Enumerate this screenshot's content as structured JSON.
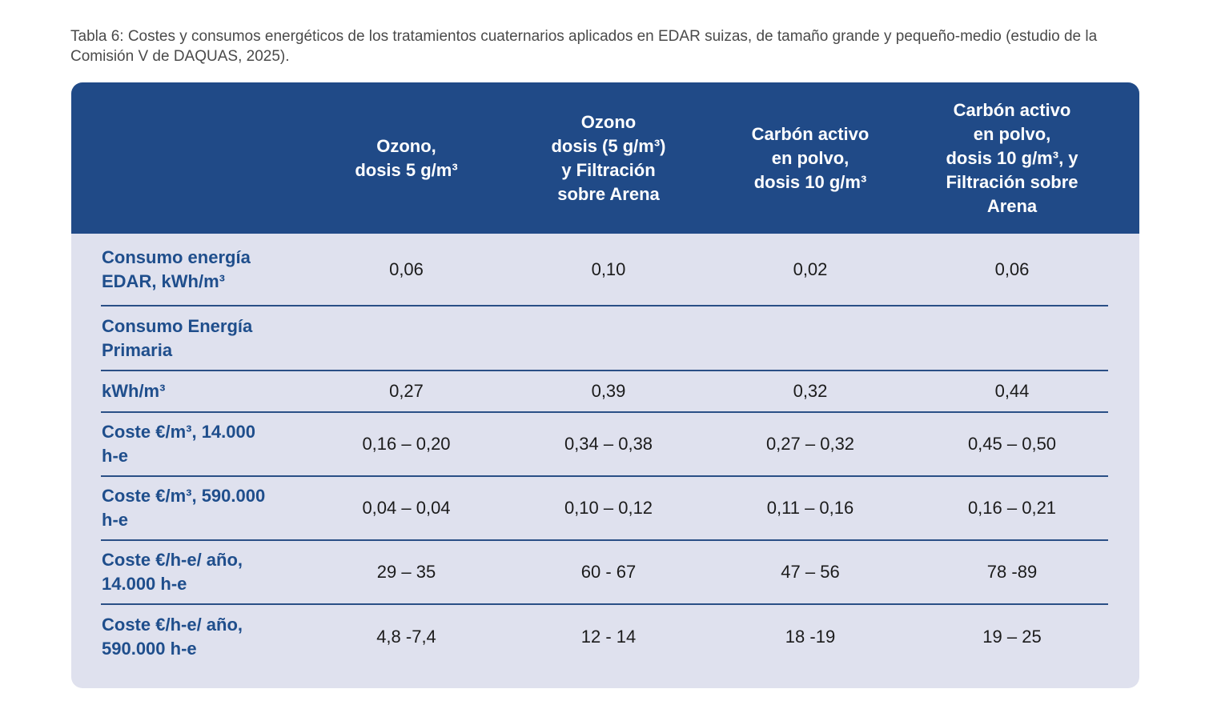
{
  "caption": "Tabla 6: Costes y consumos energéticos de los tratamientos cuaternarios aplicados en EDAR suizas, de tamaño grande y pequeño-medio (estudio de la Comisión V de DAQUAS, 2025).",
  "table": {
    "headers": [
      "",
      "Ozono,\ndosis 5 g/m³",
      "Ozono\ndosis (5 g/m³)\ny Filtración\nsobre Arena",
      "Carbón activo\nen polvo,\ndosis 10 g/m³",
      "Carbón activo\nen polvo,\ndosis 10 g/m³, y\nFiltración sobre\nArena"
    ],
    "rows": [
      {
        "label": "Consumo energía\nEDAR, kWh/m³",
        "values": [
          "0,06",
          "0,10",
          "0,02",
          "0,06"
        ]
      },
      {
        "label": "Consumo Energía\nPrimaria",
        "values": [
          "",
          "",
          "",
          ""
        ]
      },
      {
        "label": "kWh/m³",
        "values": [
          "0,27",
          "0,39",
          "0,32",
          "0,44"
        ]
      },
      {
        "label": "Coste €/m³, 14.000\nh-e",
        "values": [
          "0,16 – 0,20",
          "0,34 – 0,38",
          "0,27 – 0,32",
          "0,45 – 0,50"
        ]
      },
      {
        "label": "Coste €/m³, 590.000\nh-e",
        "values": [
          "0,04 – 0,04",
          "0,10 – 0,12",
          "0,11 – 0,16",
          "0,16 – 0,21"
        ]
      },
      {
        "label": "Coste €/h-e/ año,\n14.000 h-e",
        "values": [
          "29 – 35",
          "60 - 67",
          "47 – 56",
          "78 -89"
        ]
      },
      {
        "label": "Coste €/h-e/ año,\n590.000 h-e",
        "values": [
          "4,8 -7,4",
          "12 - 14",
          "18 -19",
          "19 – 25"
        ]
      }
    ]
  },
  "colors": {
    "header_bg": "#204a87",
    "body_bg": "#dfe1ee",
    "label_text": "#1f4e8c"
  }
}
